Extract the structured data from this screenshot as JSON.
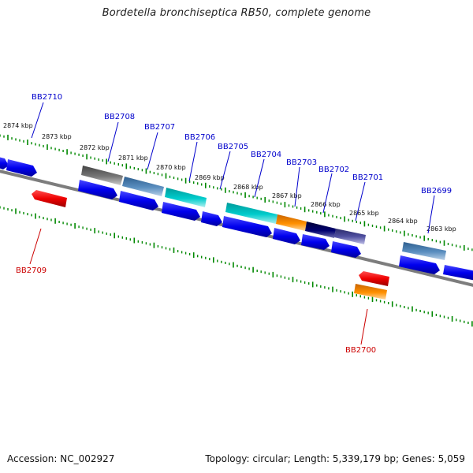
{
  "title": "Bordetella bronchiseptica RB50, complete genome",
  "footer": {
    "accession": "Accession: NC_002927",
    "summary": "Topology: circular; Length: 5,339,179 bp; Genes: 5,059"
  },
  "ruler_labels": [
    "2874 kbp",
    "2873 kbp",
    "2872 kbp",
    "2871 kbp",
    "2870 kbp",
    "2869 kbp",
    "2868 kbp",
    "2867 kbp",
    "2866 kbp",
    "2865 kbp",
    "2864 kbp",
    "2863 kbp"
  ],
  "gene_labels_top": [
    "BB2710",
    "BB2708",
    "BB2707",
    "BB2706",
    "BB2705",
    "BB2704",
    "BB2703",
    "BB2702",
    "BB2701",
    "BB2699"
  ],
  "gene_labels_bottom": [
    "BB2709",
    "BB2700"
  ],
  "colors": {
    "blue": "#0000ee",
    "steel": "#4f7fb0",
    "gray": "#666666",
    "cyan": "#00c8c8",
    "orange": "#ff8c00",
    "navy": "#000066",
    "purple": "#4a4a9c",
    "red": "#ee0000",
    "backbone": "#808080",
    "tick": "#008800",
    "top_label": "#0000cc",
    "bottom_label": "#cc0000"
  }
}
